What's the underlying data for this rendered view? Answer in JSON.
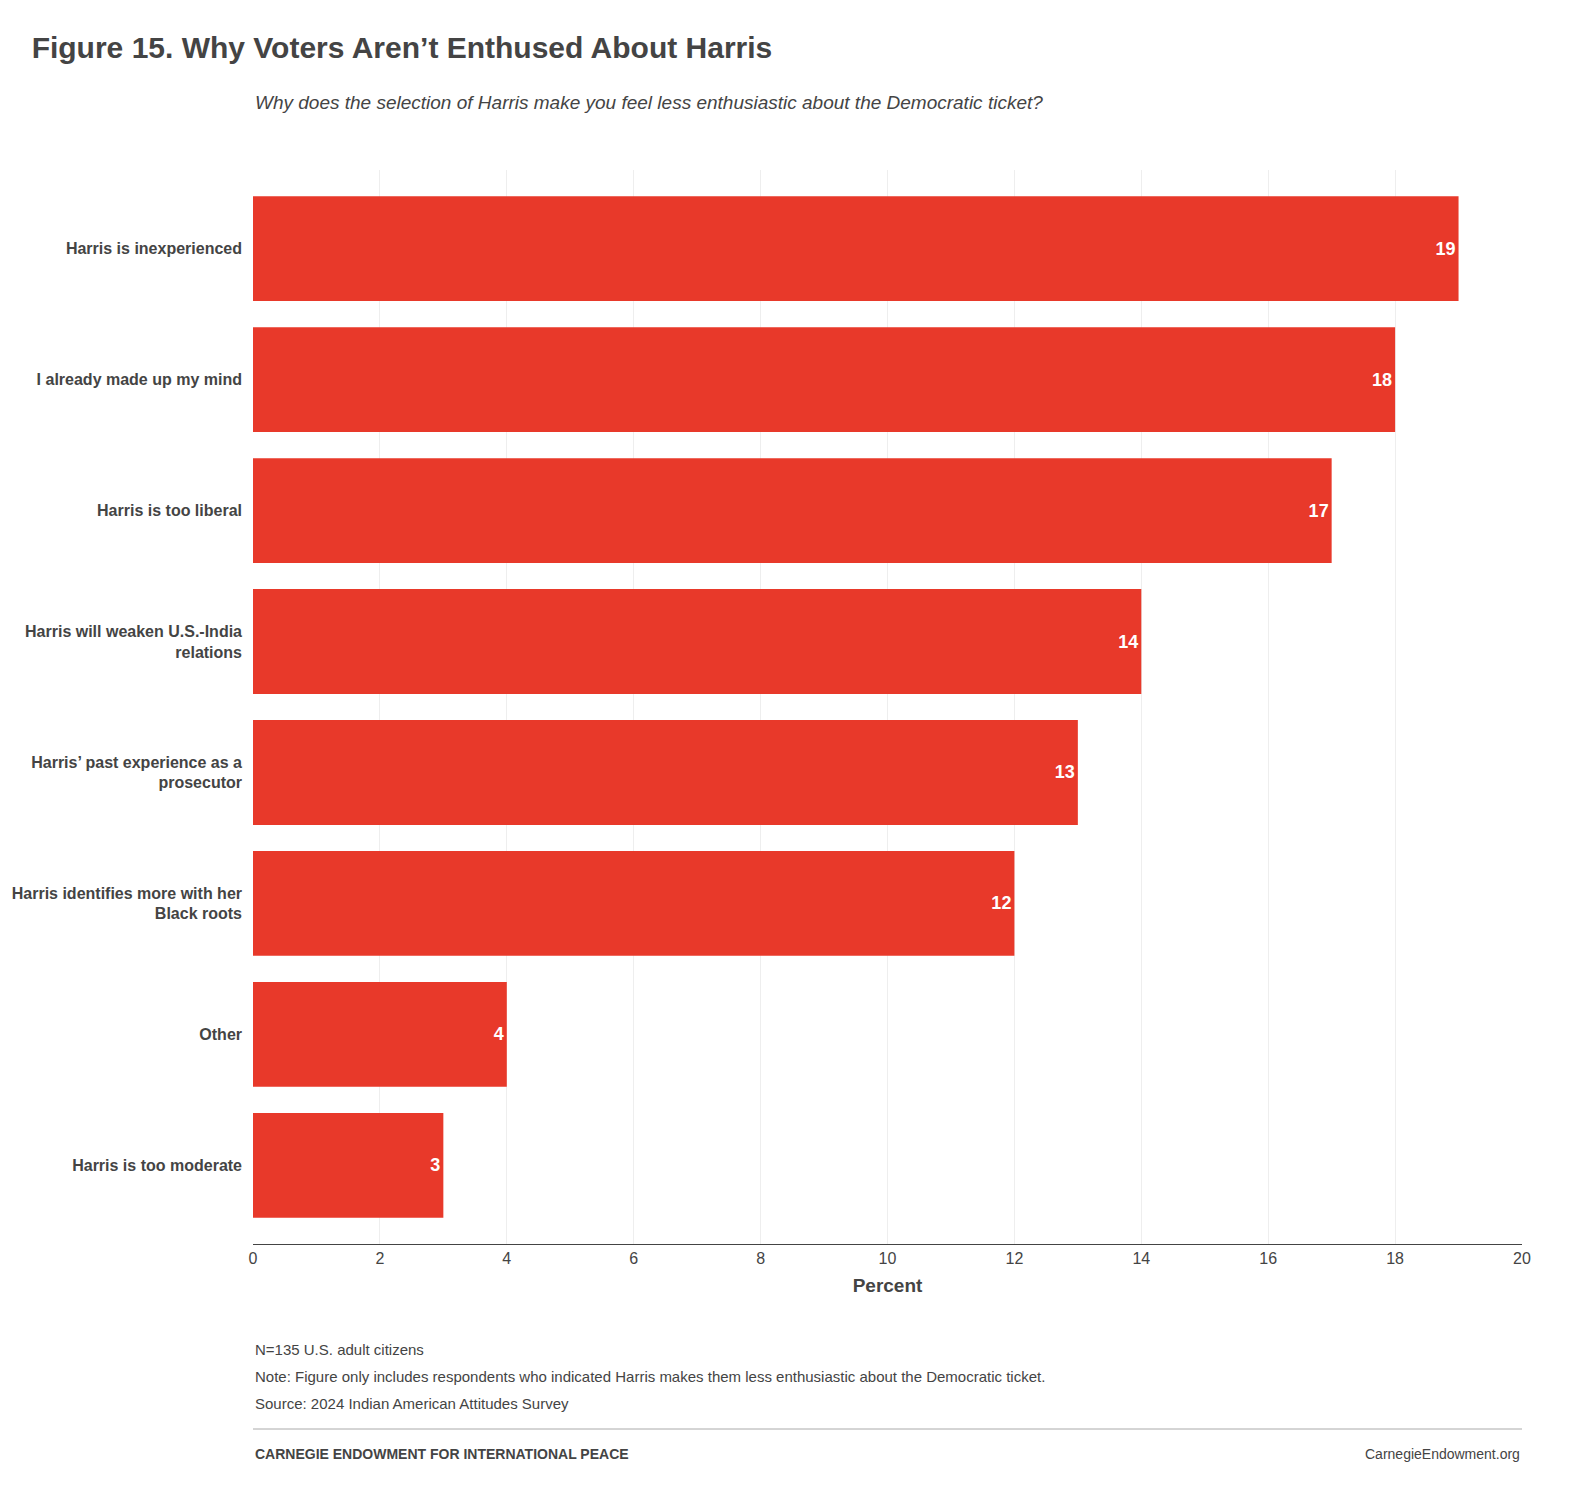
{
  "chart_data": {
    "type": "bar",
    "orientation": "horizontal",
    "title": "Figure 15. Why Voters Aren’t Enthused About Harris",
    "subtitle": "Why does the selection of Harris make you feel less enthusiastic about the Democratic ticket?",
    "categories": [
      "Harris is inexperienced",
      "I already made up my mind",
      "Harris is too liberal",
      "Harris will weaken U.S.-India\nrelations",
      "Harris’ past experience as a\nprosecutor",
      "Harris identifies more with her\nBlack roots",
      "Other",
      "Harris is too moderate"
    ],
    "values": [
      19,
      18,
      17,
      14,
      13,
      12,
      4,
      3
    ],
    "color": "#E8392A",
    "xlabel": "Percent",
    "xlim": [
      0,
      20
    ],
    "xticks": [
      0,
      2,
      4,
      6,
      8,
      10,
      12,
      14,
      16,
      18,
      20
    ],
    "grid": true,
    "data_labels": true,
    "annotations": [
      "N=135 U.S. adult citizens",
      "Note: Figure only includes respondents who indicated Harris makes them less enthusiastic about the Democratic ticket.",
      "Source: 2024 Indian American Attitudes Survey",
      "CARNEGIE ENDOWMENT FOR INTERNATIONAL PEACE",
      "CarnegieEndowment.org"
    ]
  }
}
